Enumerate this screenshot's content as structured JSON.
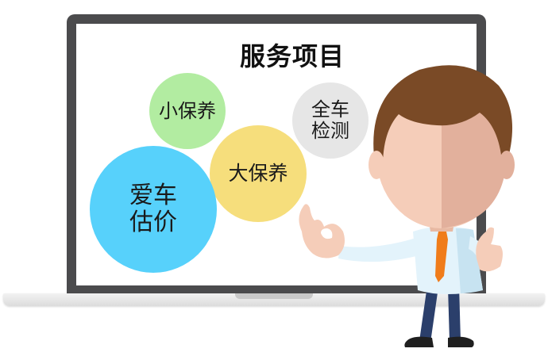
{
  "screen": {
    "title": "服务项目",
    "bubbles": {
      "small_maintenance": "小保养",
      "full_inspection": "全车\n检测",
      "major_maintenance": "大保养",
      "car_valuation": "爱车\n估价"
    }
  },
  "colors": {
    "bezel": "#4b4b4d",
    "small_maintenance": "#b2eca1",
    "full_inspection": "#e6e6e6",
    "major_maintenance": "#f6de7c",
    "car_valuation": "#57d1fb",
    "hair": "#7a4a26",
    "skin": "#f5cdb9",
    "tie": "#f07c1a",
    "pants": "#2b3f6b"
  }
}
